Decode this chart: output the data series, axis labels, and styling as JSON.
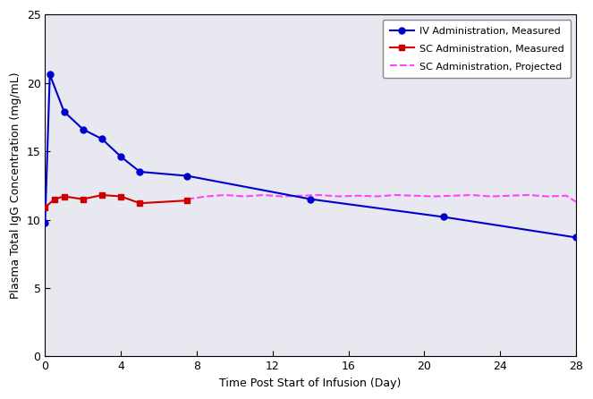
{
  "xlabel": "Time Post Start of Infusion (Day)",
  "ylabel": "Plasma Total IgG Concentration (mg/mL)",
  "iv_x": [
    0,
    0.25,
    1,
    2,
    3,
    4,
    5,
    7.5,
    14,
    21,
    28
  ],
  "iv_y": [
    9.8,
    20.6,
    17.9,
    16.6,
    15.9,
    14.6,
    13.5,
    13.2,
    11.5,
    10.2,
    8.7
  ],
  "sc_x": [
    0,
    0.5,
    1,
    2,
    3,
    4,
    5,
    7.5
  ],
  "sc_y": [
    10.9,
    11.5,
    11.7,
    11.5,
    11.8,
    11.7,
    11.2,
    11.4
  ],
  "proj_x": [
    7.5,
    8.5,
    9.5,
    10.5,
    11.5,
    12.5,
    13.5,
    14.5,
    15.5,
    16.5,
    17.5,
    18.5,
    19.5,
    20.5,
    21.5,
    22.5,
    23.5,
    24.5,
    25.5,
    26.5,
    27.5,
    28
  ],
  "proj_y": [
    11.5,
    11.7,
    11.8,
    11.7,
    11.8,
    11.7,
    11.75,
    11.8,
    11.7,
    11.75,
    11.7,
    11.8,
    11.75,
    11.7,
    11.75,
    11.8,
    11.7,
    11.75,
    11.8,
    11.7,
    11.75,
    11.3
  ],
  "iv_color": "#0000cc",
  "sc_color": "#cc0000",
  "proj_color": "#ff44ff",
  "xlim": [
    0,
    28
  ],
  "ylim": [
    0,
    25
  ],
  "xticks": [
    0,
    4,
    8,
    12,
    16,
    20,
    24,
    28
  ],
  "yticks": [
    0,
    5,
    10,
    15,
    20,
    25
  ],
  "legend_iv": "IV Administration, Measured",
  "legend_sc": "SC Administration, Measured",
  "legend_proj": "SC Administration, Projected",
  "bg_color": "#ffffff",
  "plot_bg": "#e8e8f0",
  "fig_width": 6.63,
  "fig_height": 4.46,
  "dpi": 100
}
